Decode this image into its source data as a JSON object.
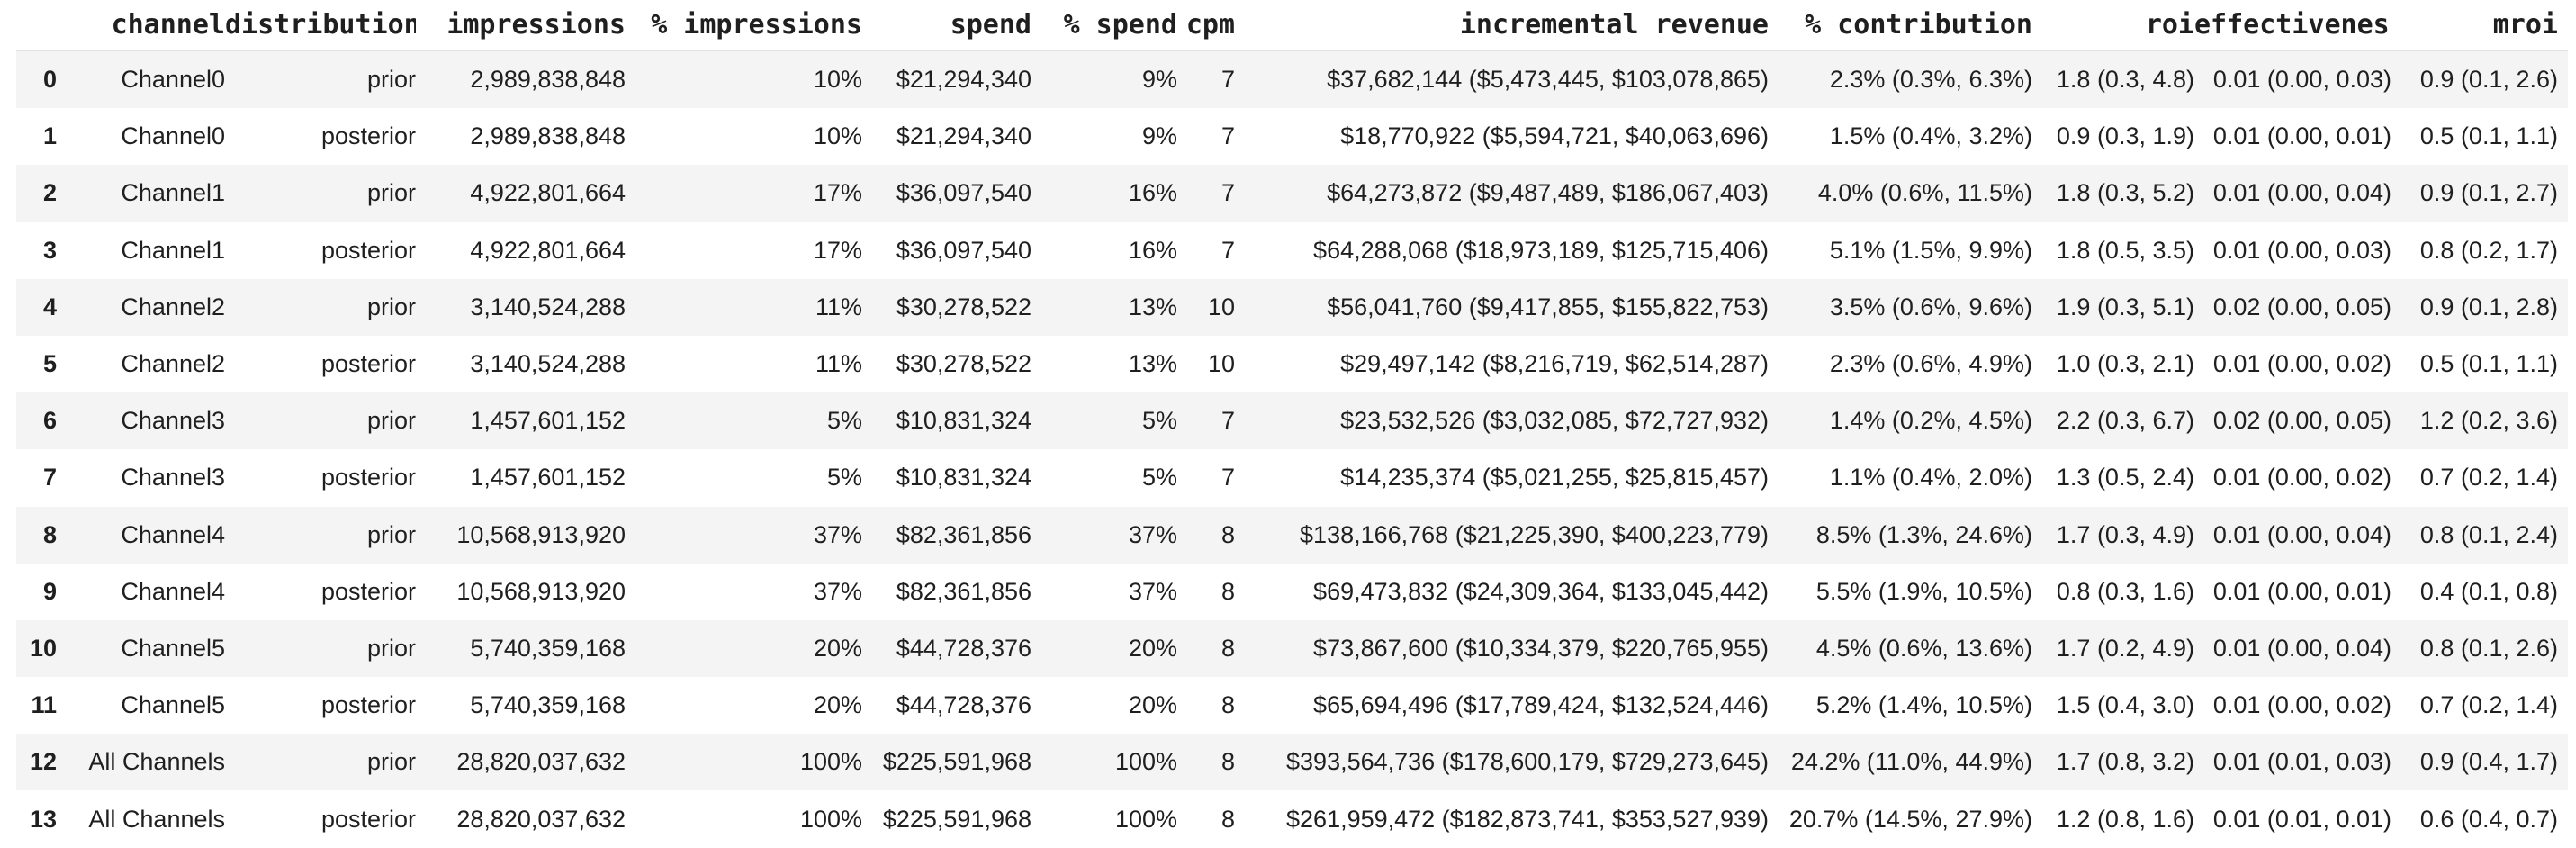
{
  "style": {
    "stripe_color": "#f4f4f4",
    "border_color": "#e1e1e1",
    "text_color": "#1f1f1f",
    "background_color": "#ffffff"
  },
  "table": {
    "columns": [
      "channel",
      "distribution",
      "impressions",
      "% impressions",
      "spend",
      "% spend",
      "cpm",
      "incremental revenue",
      "% contribution",
      "roi",
      "effectiveness",
      "mroi"
    ],
    "rows": [
      [
        "0",
        "Channel0",
        "prior",
        "2,989,838,848",
        "10%",
        "$21,294,340",
        "9%",
        "7",
        "$37,682,144 ($5,473,445, $103,078,865)",
        "2.3% (0.3%, 6.3%)",
        "1.8 (0.3, 4.8)",
        "0.01 (0.00, 0.03)",
        "0.9 (0.1, 2.6)"
      ],
      [
        "1",
        "Channel0",
        "posterior",
        "2,989,838,848",
        "10%",
        "$21,294,340",
        "9%",
        "7",
        "$18,770,922 ($5,594,721, $40,063,696)",
        "1.5% (0.4%, 3.2%)",
        "0.9 (0.3, 1.9)",
        "0.01 (0.00, 0.01)",
        "0.5 (0.1, 1.1)"
      ],
      [
        "2",
        "Channel1",
        "prior",
        "4,922,801,664",
        "17%",
        "$36,097,540",
        "16%",
        "7",
        "$64,273,872 ($9,487,489, $186,067,403)",
        "4.0% (0.6%, 11.5%)",
        "1.8 (0.3, 5.2)",
        "0.01 (0.00, 0.04)",
        "0.9 (0.1, 2.7)"
      ],
      [
        "3",
        "Channel1",
        "posterior",
        "4,922,801,664",
        "17%",
        "$36,097,540",
        "16%",
        "7",
        "$64,288,068 ($18,973,189, $125,715,406)",
        "5.1% (1.5%, 9.9%)",
        "1.8 (0.5, 3.5)",
        "0.01 (0.00, 0.03)",
        "0.8 (0.2, 1.7)"
      ],
      [
        "4",
        "Channel2",
        "prior",
        "3,140,524,288",
        "11%",
        "$30,278,522",
        "13%",
        "10",
        "$56,041,760 ($9,417,855, $155,822,753)",
        "3.5% (0.6%, 9.6%)",
        "1.9 (0.3, 5.1)",
        "0.02 (0.00, 0.05)",
        "0.9 (0.1, 2.8)"
      ],
      [
        "5",
        "Channel2",
        "posterior",
        "3,140,524,288",
        "11%",
        "$30,278,522",
        "13%",
        "10",
        "$29,497,142 ($8,216,719, $62,514,287)",
        "2.3% (0.6%, 4.9%)",
        "1.0 (0.3, 2.1)",
        "0.01 (0.00, 0.02)",
        "0.5 (0.1, 1.1)"
      ],
      [
        "6",
        "Channel3",
        "prior",
        "1,457,601,152",
        "5%",
        "$10,831,324",
        "5%",
        "7",
        "$23,532,526 ($3,032,085, $72,727,932)",
        "1.4% (0.2%, 4.5%)",
        "2.2 (0.3, 6.7)",
        "0.02 (0.00, 0.05)",
        "1.2 (0.2, 3.6)"
      ],
      [
        "7",
        "Channel3",
        "posterior",
        "1,457,601,152",
        "5%",
        "$10,831,324",
        "5%",
        "7",
        "$14,235,374 ($5,021,255, $25,815,457)",
        "1.1% (0.4%, 2.0%)",
        "1.3 (0.5, 2.4)",
        "0.01 (0.00, 0.02)",
        "0.7 (0.2, 1.4)"
      ],
      [
        "8",
        "Channel4",
        "prior",
        "10,568,913,920",
        "37%",
        "$82,361,856",
        "37%",
        "8",
        "$138,166,768 ($21,225,390, $400,223,779)",
        "8.5% (1.3%, 24.6%)",
        "1.7 (0.3, 4.9)",
        "0.01 (0.00, 0.04)",
        "0.8 (0.1, 2.4)"
      ],
      [
        "9",
        "Channel4",
        "posterior",
        "10,568,913,920",
        "37%",
        "$82,361,856",
        "37%",
        "8",
        "$69,473,832 ($24,309,364, $133,045,442)",
        "5.5% (1.9%, 10.5%)",
        "0.8 (0.3, 1.6)",
        "0.01 (0.00, 0.01)",
        "0.4 (0.1, 0.8)"
      ],
      [
        "10",
        "Channel5",
        "prior",
        "5,740,359,168",
        "20%",
        "$44,728,376",
        "20%",
        "8",
        "$73,867,600 ($10,334,379, $220,765,955)",
        "4.5% (0.6%, 13.6%)",
        "1.7 (0.2, 4.9)",
        "0.01 (0.00, 0.04)",
        "0.8 (0.1, 2.6)"
      ],
      [
        "11",
        "Channel5",
        "posterior",
        "5,740,359,168",
        "20%",
        "$44,728,376",
        "20%",
        "8",
        "$65,694,496 ($17,789,424, $132,524,446)",
        "5.2% (1.4%, 10.5%)",
        "1.5 (0.4, 3.0)",
        "0.01 (0.00, 0.02)",
        "0.7 (0.2, 1.4)"
      ],
      [
        "12",
        "All Channels",
        "prior",
        "28,820,037,632",
        "100%",
        "$225,591,968",
        "100%",
        "8",
        "$393,564,736 ($178,600,179, $729,273,645)",
        "24.2% (11.0%, 44.9%)",
        "1.7 (0.8, 3.2)",
        "0.01 (0.01, 0.03)",
        "0.9 (0.4, 1.7)"
      ],
      [
        "13",
        "All Channels",
        "posterior",
        "28,820,037,632",
        "100%",
        "$225,591,968",
        "100%",
        "8",
        "$261,959,472 ($182,873,741, $353,527,939)",
        "20.7% (14.5%, 27.9%)",
        "1.2 (0.8, 1.6)",
        "0.01 (0.01, 0.01)",
        "0.6 (0.4, 0.7)"
      ]
    ]
  }
}
